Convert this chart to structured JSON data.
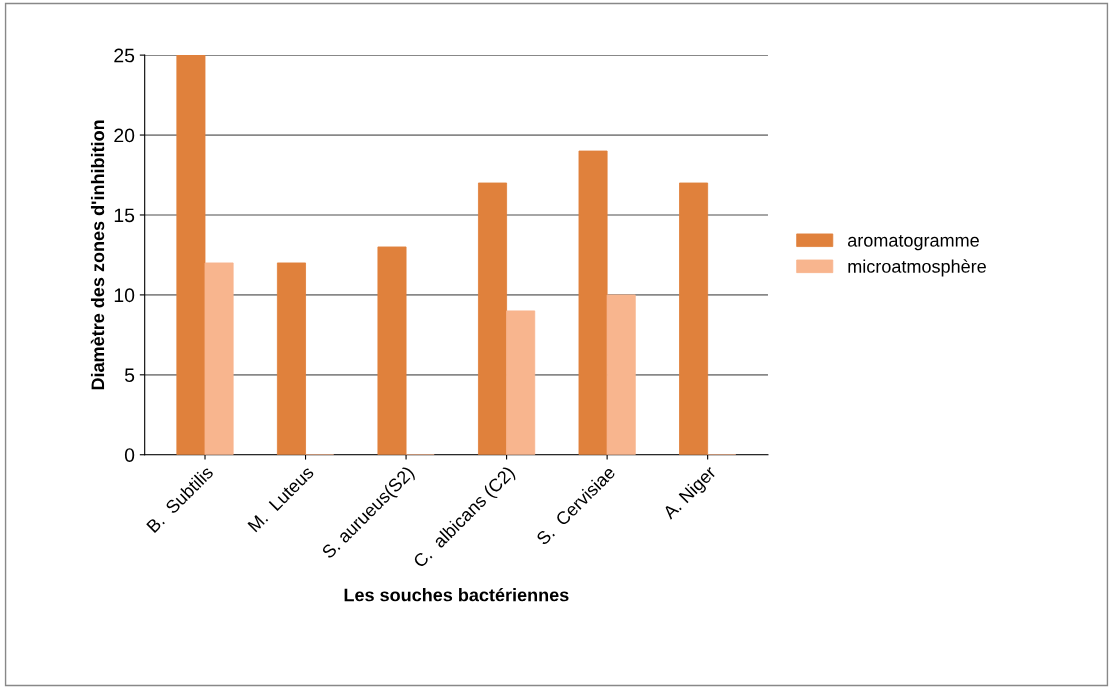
{
  "chart_data": {
    "type": "bar",
    "xlabel": "Les souches bactériennes",
    "ylabel": "Diamètre des zones d'inhibition",
    "categories": [
      "B.  Subtilis",
      "M.  Luteus",
      "S. aurueus(S2)",
      "C.  albicans (C2)",
      "S.  Cervisiae",
      "A. Niger"
    ],
    "series": [
      {
        "name": "aromatogramme",
        "color": "#e0813c",
        "values": [
          25,
          12,
          13,
          17,
          19,
          17
        ]
      },
      {
        "name": "microatmosphère",
        "color": "#f8b58e",
        "values": [
          12,
          0,
          0,
          9,
          10,
          0
        ]
      }
    ],
    "ylim": [
      0,
      25
    ],
    "yticks": [
      0,
      5,
      10,
      15,
      20,
      25
    ],
    "grid": "y",
    "legend": "right"
  }
}
